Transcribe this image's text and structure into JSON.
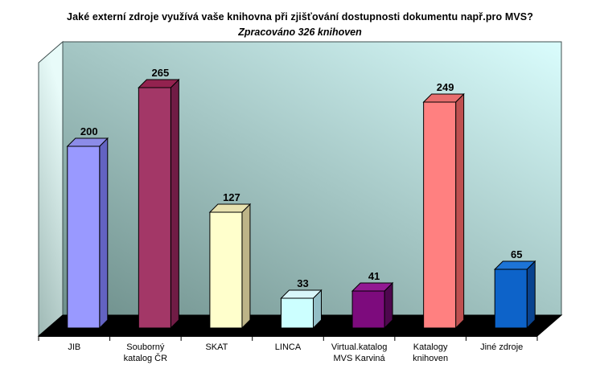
{
  "title": "Jaké externí zdroje využívá vaše knihovna při zjišťování dostupnosti dokumentu např.pro MVS?",
  "subtitle": "Zpracováno 326 knihoven",
  "chart_data": {
    "type": "bar",
    "projection": "3d-column",
    "title": "Jaké externí zdroje využívá vaše knihovna při zjišťování dostupnosti dokumentu např.pro MVS?",
    "subtitle": "Zpracováno 326 knihoven",
    "categories": [
      "JIB",
      "Souborný katalog ČR",
      "SKAT",
      "LINCA",
      "Virtual.katalog MVS Karviná",
      "Katalogy knihoven",
      "Jiné zdroje"
    ],
    "category_label_lines": [
      [
        "JIB"
      ],
      [
        "Souborný",
        "katalog ČR"
      ],
      [
        "SKAT"
      ],
      [
        "LINCA"
      ],
      [
        "Virtual.katalog",
        "MVS Karviná"
      ],
      [
        "Katalogy",
        "knihoven"
      ],
      [
        "Jiné zdroje"
      ]
    ],
    "category_slugs": [
      "jib",
      "souborny-katalog-cr",
      "skat",
      "linca",
      "virtual-katalog-mvs-karvina",
      "katalogy-knihoven",
      "jine-zdroje"
    ],
    "values": [
      200,
      265,
      127,
      33,
      41,
      249,
      65
    ],
    "data_labels": true,
    "ylim": [
      0,
      300
    ],
    "y_axis_visible": false,
    "grid": false,
    "legend": "none",
    "bar_colors": [
      {
        "front": "#9999FF",
        "top": "#8C8CE8",
        "side": "#6363C2"
      },
      {
        "front": "#A33767",
        "top": "#93224F",
        "side": "#701C45"
      },
      {
        "front": "#FFFFCC",
        "top": "#E8E2B0",
        "side": "#BDB488"
      },
      {
        "front": "#CCFFFF",
        "top": "#D8F6FA",
        "side": "#93BEC6"
      },
      {
        "front": "#7D0B7D",
        "top": "#921992",
        "side": "#4E074E"
      },
      {
        "front": "#FF8080",
        "top": "#E86E6E",
        "side": "#BF5050"
      },
      {
        "front": "#0D63C9",
        "top": "#1D74D6",
        "side": "#09438F"
      }
    ],
    "wall_gradient": {
      "from": "#6E8F8B",
      "to": "#DAFDFD",
      "direction": "bottom-left to top-right"
    },
    "side_wall_gradient": {
      "from": "#9FB9B5",
      "to": "#E8FBF9",
      "direction": "bottom to top"
    },
    "floor_color": "#000000",
    "outline_color": "#000000",
    "background_color": "#FFFFFF"
  }
}
